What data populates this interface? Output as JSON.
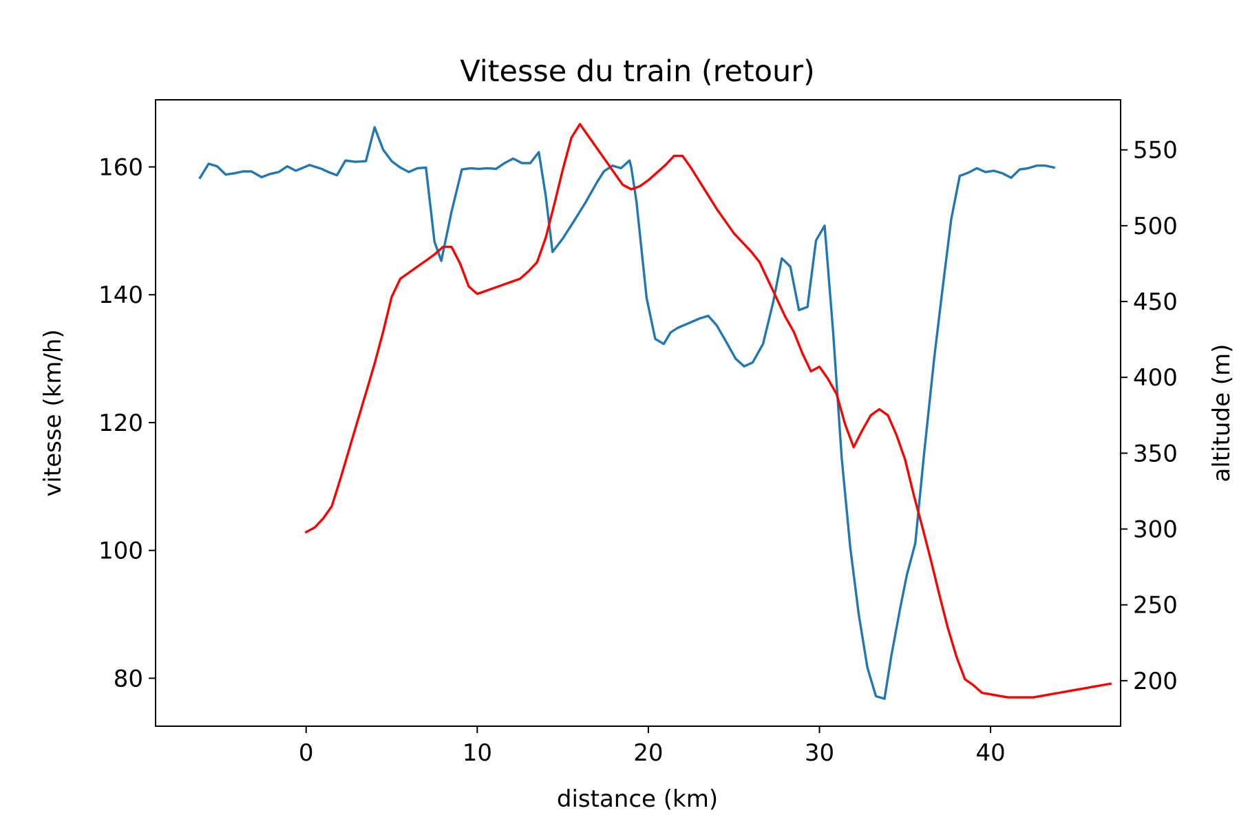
{
  "chart_data": {
    "type": "line",
    "title": "Vitesse du train (retour)",
    "xlabel": "distance (km)",
    "ylabel": "vitesse (km/h)",
    "y2label": "altitude (m)",
    "xlim": [
      -8.8,
      47.6
    ],
    "ylim": [
      72.5,
      170.5
    ],
    "y2lim": [
      170,
      583
    ],
    "x_ticks": [
      0,
      10,
      20,
      30,
      40
    ],
    "y_ticks": [
      80,
      100,
      120,
      140,
      160
    ],
    "y2_ticks": [
      200,
      250,
      300,
      350,
      400,
      450,
      500,
      550
    ],
    "grid": false,
    "legend": "none",
    "series": [
      {
        "axis": "left",
        "color": "#1f77b4",
        "points": [
          [
            -6.2,
            158.3
          ],
          [
            -5.7,
            160.5
          ],
          [
            -5.2,
            160.1
          ],
          [
            -4.7,
            158.8
          ],
          [
            -4.2,
            159.0
          ],
          [
            -3.7,
            159.3
          ],
          [
            -3.2,
            159.3
          ],
          [
            -2.6,
            158.4
          ],
          [
            -2.1,
            158.9
          ],
          [
            -1.6,
            159.2
          ],
          [
            -1.1,
            160.1
          ],
          [
            -0.6,
            159.4
          ],
          [
            0.2,
            160.3
          ],
          [
            0.9,
            159.7
          ],
          [
            1.3,
            159.2
          ],
          [
            1.8,
            158.7
          ],
          [
            2.3,
            161.0
          ],
          [
            2.9,
            160.8
          ],
          [
            3.5,
            160.9
          ],
          [
            3.5,
            161.0
          ],
          [
            4.0,
            166.2
          ],
          [
            4.5,
            162.7
          ],
          [
            5.0,
            160.9
          ],
          [
            5.5,
            159.9
          ],
          [
            6.0,
            159.2
          ],
          [
            6.5,
            159.8
          ],
          [
            7.0,
            159.9
          ],
          [
            7.5,
            148.3
          ],
          [
            7.9,
            145.3
          ],
          [
            8.5,
            153.0
          ],
          [
            9.1,
            159.6
          ],
          [
            9.6,
            159.8
          ],
          [
            10.1,
            159.7
          ],
          [
            10.6,
            159.8
          ],
          [
            11.1,
            159.7
          ],
          [
            11.6,
            160.6
          ],
          [
            12.1,
            161.3
          ],
          [
            12.6,
            160.6
          ],
          [
            13.1,
            160.6
          ],
          [
            13.6,
            162.3
          ],
          [
            14.0,
            155.5
          ],
          [
            14.4,
            146.7
          ],
          [
            15.0,
            148.8
          ],
          [
            15.6,
            151.3
          ],
          [
            16.3,
            154.3
          ],
          [
            17.0,
            157.6
          ],
          [
            17.4,
            159.3
          ],
          [
            17.9,
            160.2
          ],
          [
            18.4,
            159.8
          ],
          [
            18.9,
            161.0
          ],
          [
            19.0,
            159.9
          ],
          [
            19.3,
            154.7
          ],
          [
            19.9,
            139.5
          ],
          [
            20.4,
            133.1
          ],
          [
            20.9,
            132.3
          ],
          [
            21.3,
            134.1
          ],
          [
            21.7,
            134.8
          ],
          [
            22.4,
            135.6
          ],
          [
            23.0,
            136.3
          ],
          [
            23.5,
            136.7
          ],
          [
            24.0,
            135.2
          ],
          [
            24.6,
            132.4
          ],
          [
            25.1,
            130.0
          ],
          [
            25.6,
            128.8
          ],
          [
            26.1,
            129.4
          ],
          [
            26.7,
            132.3
          ],
          [
            27.3,
            138.9
          ],
          [
            27.8,
            145.7
          ],
          [
            28.3,
            144.4
          ],
          [
            28.8,
            137.6
          ],
          [
            29.3,
            138.1
          ],
          [
            29.8,
            148.5
          ],
          [
            30.3,
            150.8
          ],
          [
            30.8,
            134.1
          ],
          [
            31.3,
            114.5
          ],
          [
            31.8,
            100.5
          ],
          [
            32.3,
            89.9
          ],
          [
            32.8,
            81.7
          ],
          [
            33.3,
            77.2
          ],
          [
            33.8,
            76.8
          ],
          [
            34.2,
            83.5
          ],
          [
            34.7,
            90.7
          ],
          [
            35.1,
            96.1
          ],
          [
            35.6,
            101.1
          ],
          [
            36.1,
            114.7
          ],
          [
            36.7,
            129.9
          ],
          [
            37.2,
            141.1
          ],
          [
            37.7,
            151.8
          ],
          [
            38.2,
            158.6
          ],
          [
            38.7,
            159.1
          ],
          [
            39.2,
            159.8
          ],
          [
            39.7,
            159.2
          ],
          [
            40.2,
            159.4
          ],
          [
            40.7,
            159.0
          ],
          [
            41.2,
            158.3
          ],
          [
            41.7,
            159.6
          ],
          [
            42.2,
            159.8
          ],
          [
            42.7,
            160.2
          ],
          [
            43.2,
            160.2
          ],
          [
            43.7,
            159.9
          ]
        ]
      },
      {
        "axis": "right",
        "color": "#ff0000",
        "points": [
          [
            0,
            298
          ],
          [
            0.5,
            301
          ],
          [
            1.0,
            307
          ],
          [
            1.5,
            315
          ],
          [
            2.0,
            333
          ],
          [
            2.5,
            352
          ],
          [
            3.0,
            371
          ],
          [
            3.5,
            390
          ],
          [
            4.0,
            409
          ],
          [
            4.5,
            430
          ],
          [
            5.0,
            453
          ],
          [
            5.5,
            465
          ],
          [
            6.0,
            469
          ],
          [
            6.5,
            473
          ],
          [
            7.0,
            477
          ],
          [
            7.5,
            481
          ],
          [
            8.0,
            486
          ],
          [
            8.5,
            486
          ],
          [
            9.0,
            475
          ],
          [
            9.5,
            460
          ],
          [
            10.0,
            455
          ],
          [
            10.5,
            457
          ],
          [
            11.0,
            459
          ],
          [
            11.5,
            461
          ],
          [
            12.0,
            463
          ],
          [
            12.5,
            465
          ],
          [
            13.0,
            470
          ],
          [
            13.5,
            476
          ],
          [
            14.0,
            492
          ],
          [
            14.5,
            514
          ],
          [
            15.0,
            537
          ],
          [
            15.5,
            558
          ],
          [
            16.0,
            567
          ],
          [
            16.5,
            559
          ],
          [
            17.0,
            551
          ],
          [
            17.5,
            543
          ],
          [
            18.0,
            535
          ],
          [
            18.5,
            527
          ],
          [
            19.0,
            524
          ],
          [
            19.5,
            526
          ],
          [
            20.0,
            530
          ],
          [
            20.5,
            535
          ],
          [
            21.0,
            540
          ],
          [
            21.5,
            546
          ],
          [
            22.0,
            546
          ],
          [
            22.5,
            538
          ],
          [
            23.0,
            529
          ],
          [
            23.5,
            520
          ],
          [
            24.0,
            511
          ],
          [
            24.5,
            503
          ],
          [
            25.0,
            495
          ],
          [
            25.5,
            489
          ],
          [
            26.0,
            483
          ],
          [
            26.5,
            476
          ],
          [
            27.0,
            464
          ],
          [
            27.5,
            452
          ],
          [
            28.0,
            440
          ],
          [
            28.5,
            430
          ],
          [
            29.0,
            416
          ],
          [
            29.5,
            404
          ],
          [
            30.0,
            407
          ],
          [
            30.5,
            399
          ],
          [
            31.0,
            389
          ],
          [
            31.5,
            369
          ],
          [
            32.0,
            354
          ],
          [
            32.5,
            365
          ],
          [
            33.0,
            375
          ],
          [
            33.5,
            379
          ],
          [
            34.0,
            375
          ],
          [
            34.5,
            362
          ],
          [
            35.0,
            346
          ],
          [
            35.5,
            323
          ],
          [
            36.0,
            302
          ],
          [
            36.5,
            280
          ],
          [
            37.0,
            257
          ],
          [
            37.5,
            235
          ],
          [
            38.0,
            216
          ],
          [
            38.5,
            201
          ],
          [
            39.0,
            197
          ],
          [
            39.5,
            192
          ],
          [
            40.0,
            191
          ],
          [
            40.5,
            190
          ],
          [
            41.0,
            189
          ],
          [
            41.5,
            189
          ],
          [
            42.0,
            189
          ],
          [
            42.5,
            189
          ],
          [
            43.0,
            190
          ],
          [
            43.5,
            191
          ],
          [
            44.0,
            192
          ],
          [
            44.5,
            193
          ],
          [
            45.0,
            194
          ],
          [
            45.5,
            195
          ],
          [
            46.0,
            196
          ],
          [
            46.5,
            197
          ],
          [
            47.0,
            198
          ]
        ]
      }
    ]
  }
}
